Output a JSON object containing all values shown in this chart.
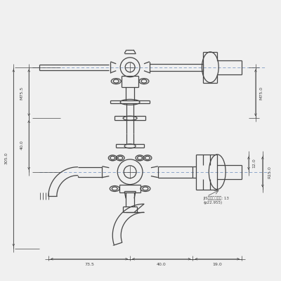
{
  "bg_color": "#f0f0f0",
  "line_color": "#444444",
  "dim_color": "#444444",
  "center_line_color": "#6688bb",
  "figsize": [
    4.0,
    4.0
  ],
  "dpi": 100,
  "annotations": {
    "dim_top_right": "M75.0",
    "dim_left_top": "M75.5",
    "dim_left_mid": "40.0",
    "dim_left_bot": "305.0",
    "dim_right_small": "12.0",
    "dim_right_big": "R15.0",
    "dim_bot1": "73.5",
    "dim_bot2": "40.0",
    "dim_bot3": "19.0",
    "jis_note": "JIS関連水道部品: 13",
    "jis_sub": "(φ22.955)"
  }
}
